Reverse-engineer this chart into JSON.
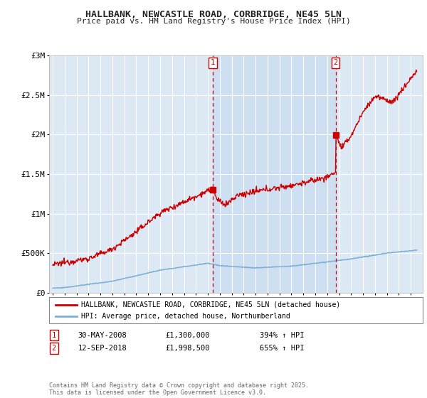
{
  "title": "HALLBANK, NEWCASTLE ROAD, CORBRIDGE, NE45 5LN",
  "subtitle": "Price paid vs. HM Land Registry's House Price Index (HPI)",
  "ylim": [
    0,
    3000000
  ],
  "yticks": [
    0,
    500000,
    1000000,
    1500000,
    2000000,
    2500000,
    3000000
  ],
  "ytick_labels": [
    "£0",
    "£500K",
    "£1M",
    "£1.5M",
    "£2M",
    "£2.5M",
    "£3M"
  ],
  "bg_color": "#dce9f5",
  "shade_color": "#c8dcf0",
  "red_color": "#cc0000",
  "blue_color": "#7bafd4",
  "annotation1": {
    "year": 2008.42,
    "price": 1300000,
    "label": "1"
  },
  "annotation2": {
    "year": 2018.71,
    "price": 1998500,
    "label": "2"
  },
  "legend_line1": "HALLBANK, NEWCASTLE ROAD, CORBRIDGE, NE45 5LN (detached house)",
  "legend_line2": "HPI: Average price, detached house, Northumberland",
  "note1_label": "1",
  "note1_date": "30-MAY-2008",
  "note1_price": "£1,300,000",
  "note1_hpi": "394% ↑ HPI",
  "note2_label": "2",
  "note2_date": "12-SEP-2018",
  "note2_price": "£1,998,500",
  "note2_hpi": "655% ↑ HPI",
  "footer": "Contains HM Land Registry data © Crown copyright and database right 2025.\nThis data is licensed under the Open Government Licence v3.0."
}
